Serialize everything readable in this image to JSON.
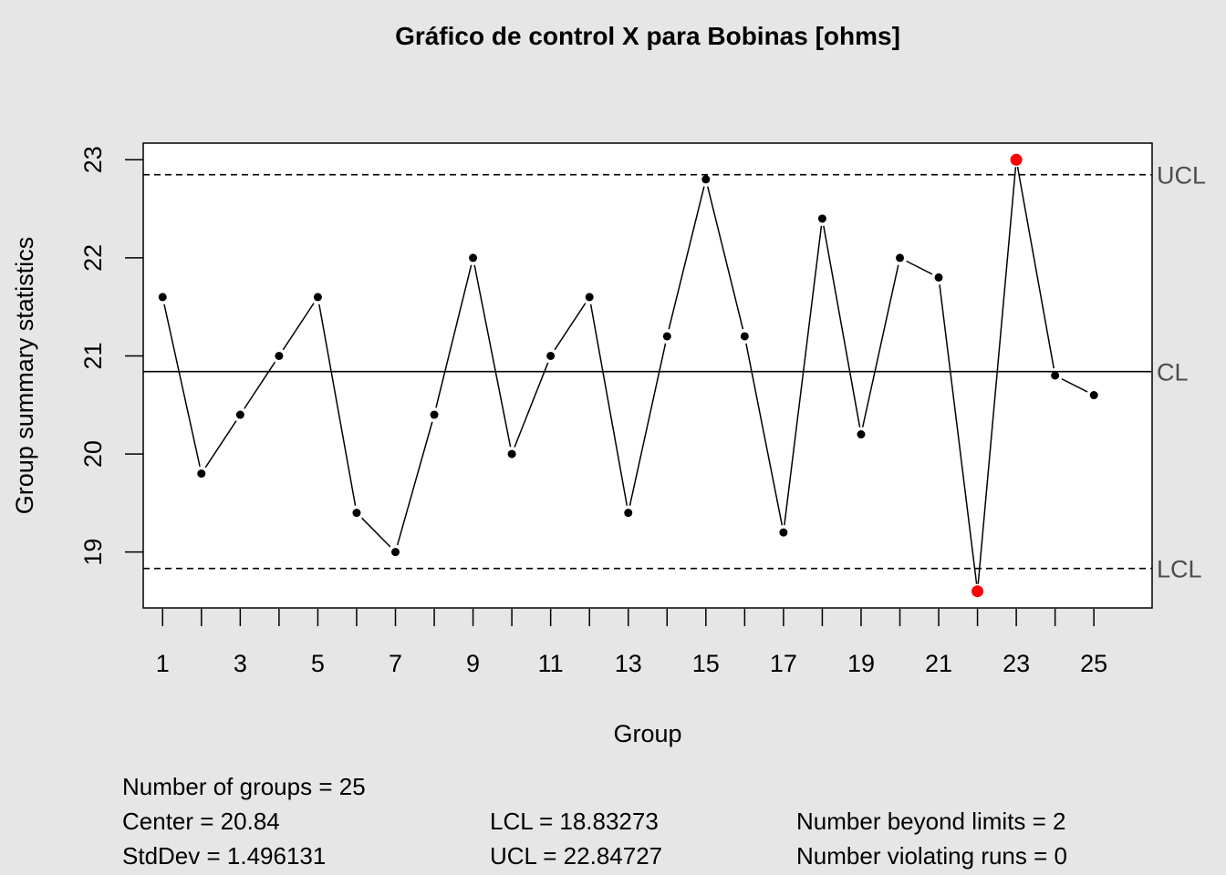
{
  "chart_data": {
    "type": "line",
    "title": "Gráfico de control X para Bobinas [ohms]",
    "xlabel": "Group",
    "ylabel": "Group summary statistics",
    "x": [
      1,
      2,
      3,
      4,
      5,
      6,
      7,
      8,
      9,
      10,
      11,
      12,
      13,
      14,
      15,
      16,
      17,
      18,
      19,
      20,
      21,
      22,
      23,
      24,
      25
    ],
    "values": [
      21.6,
      19.8,
      20.4,
      21.0,
      21.6,
      19.4,
      19.0,
      20.4,
      22.0,
      20.0,
      21.0,
      21.6,
      19.4,
      21.2,
      22.8,
      21.2,
      19.2,
      22.4,
      20.2,
      22.0,
      21.8,
      18.6,
      23.0,
      20.8,
      20.6
    ],
    "x_ticks": [
      "1",
      "3",
      "5",
      "7",
      "9",
      "11",
      "13",
      "15",
      "17",
      "19",
      "21",
      "23",
      "25"
    ],
    "y_ticks": [
      "19",
      "20",
      "21",
      "22",
      "23"
    ],
    "xlim": [
      0.5,
      26.5
    ],
    "ylim": [
      18.43,
      23.17
    ],
    "control_lines": [
      {
        "label": "UCL",
        "value": 22.84727,
        "style": "dashed"
      },
      {
        "label": "CL",
        "value": 20.84,
        "style": "solid"
      },
      {
        "label": "LCL",
        "value": 18.83273,
        "style": "dashed"
      }
    ],
    "out_of_control_points": [
      22,
      23
    ],
    "colors": {
      "point": "#000000",
      "violation": "#ff0000",
      "line": "#000000",
      "label": "#4d4d4d"
    }
  },
  "stats": {
    "groups": "Number of groups = 25",
    "center": "Center = 20.84",
    "stddev": "StdDev = 1.496131",
    "lcl": "LCL = 18.83273",
    "ucl": "UCL = 22.84727",
    "beyond": "Number beyond limits = 2",
    "runs": "Number violating runs = 0"
  }
}
